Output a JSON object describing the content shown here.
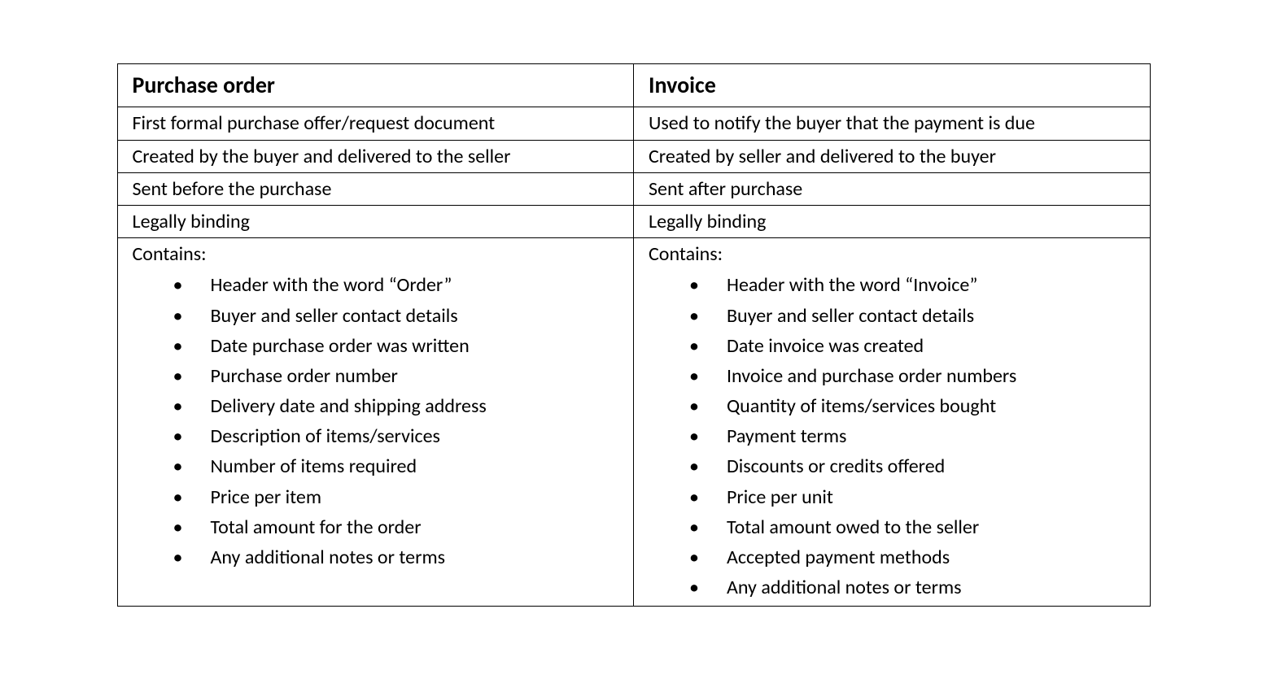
{
  "table": {
    "columns": [
      {
        "header": "Purchase order",
        "rows": [
          "First formal purchase offer/request document",
          "Created by the buyer and delivered to the seller",
          "Sent before the purchase",
          "Legally binding"
        ],
        "contains_label": "Contains:",
        "contains_items": [
          "Header with the word “Order”",
          "Buyer and seller contact details",
          "Date purchase order was written",
          "Purchase order number",
          "Delivery date and shipping address",
          "Description of items/services",
          "Number of items required",
          "Price per item",
          "Total amount for the order",
          "Any additional notes or terms"
        ]
      },
      {
        "header": "Invoice",
        "rows": [
          "Used to notify the buyer that the payment is due",
          "Created by seller and delivered to the buyer",
          "Sent after purchase",
          "Legally binding"
        ],
        "contains_label": "Contains:",
        "contains_items": [
          "Header with the word “Invoice”",
          "Buyer and seller contact details",
          "Date invoice was created",
          "Invoice and purchase order numbers",
          "Quantity of items/services bought",
          "Payment terms",
          "Discounts or credits offered",
          "Price per unit",
          "Total amount owed to the seller",
          "Accepted payment methods",
          "Any additional notes or terms"
        ]
      }
    ],
    "styling": {
      "border_color": "#000000",
      "text_color": "#000000",
      "background_color": "#ffffff",
      "font_family": "Calibri",
      "header_font_size": 28,
      "body_font_size": 24,
      "header_font_weight": "bold",
      "column_count": 2,
      "column_widths": [
        "50%",
        "50%"
      ],
      "bullet_style": "disc"
    }
  }
}
